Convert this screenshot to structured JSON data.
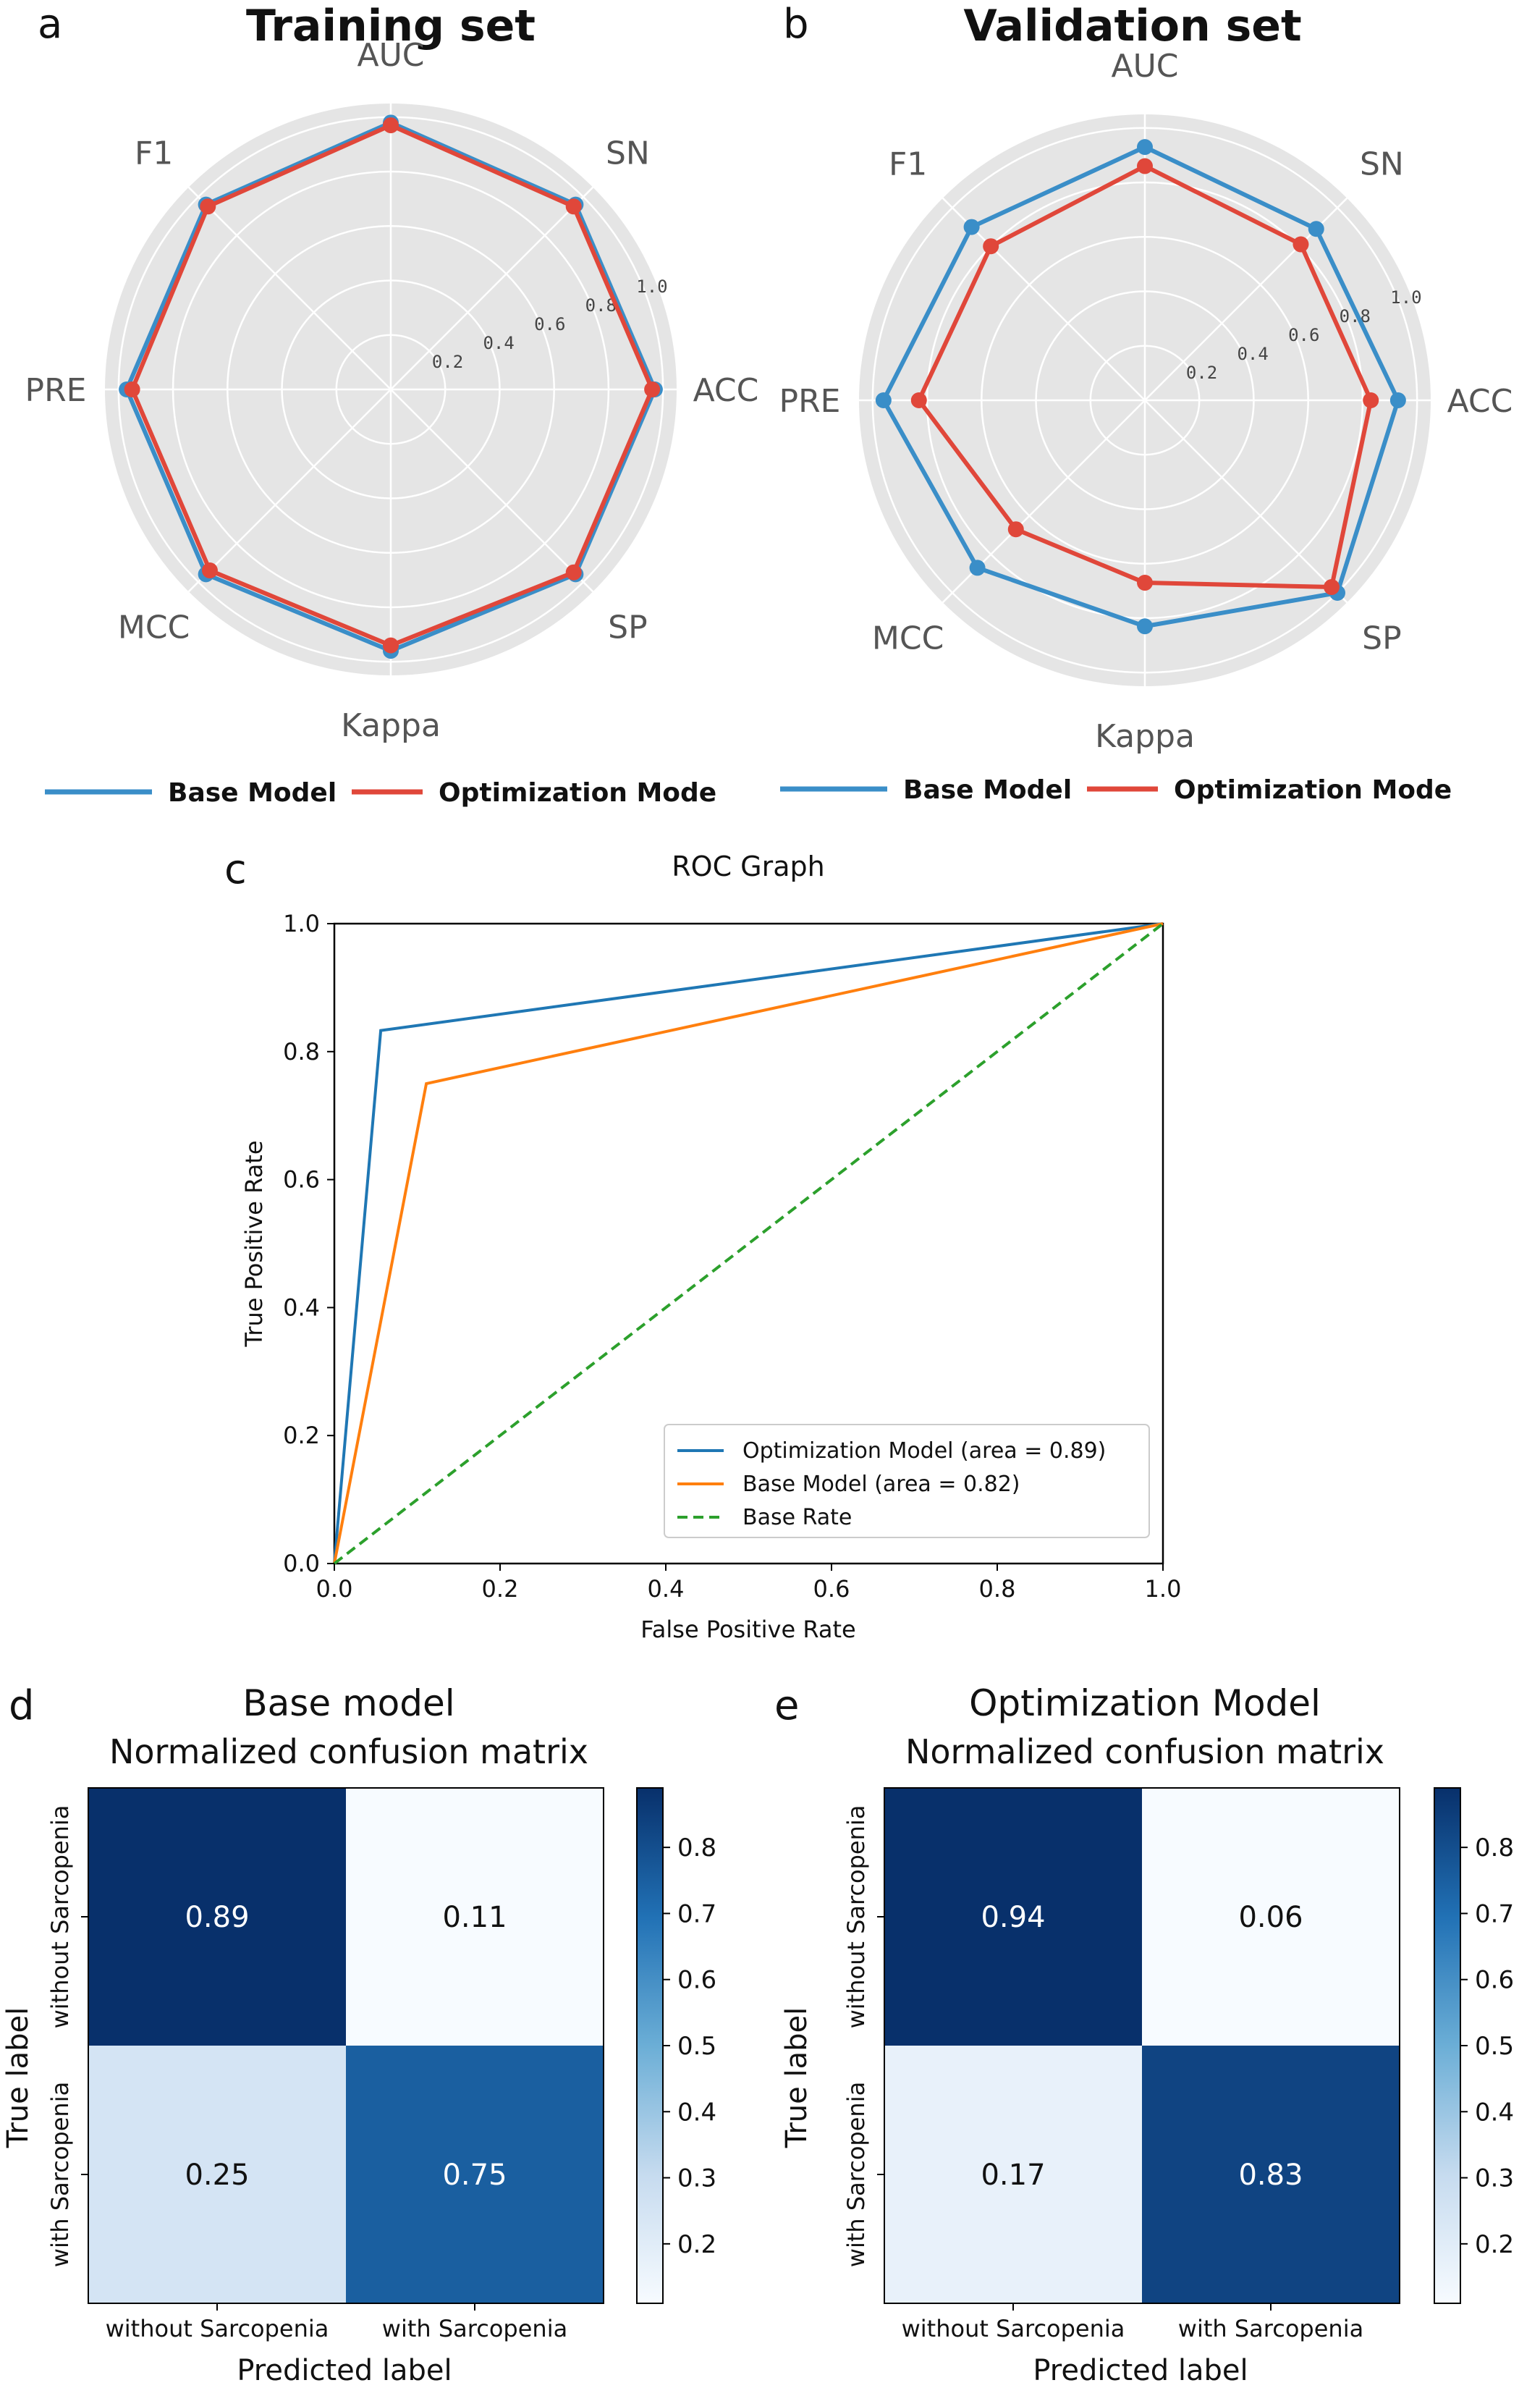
{
  "panels": {
    "a": "a",
    "b": "b",
    "c": "c",
    "d": "d",
    "e": "e"
  },
  "legend_radar": {
    "base": "Base Model",
    "optimization": "Optimization Mode"
  },
  "colors": {
    "base_radar": "#3a8ec8",
    "optimization_radar": "#e0473a",
    "roc_optimization": "#1f77b4",
    "roc_base": "#ff7f0e",
    "roc_baserate": "#2ca02c",
    "radar_bg": "#e5e5e5"
  },
  "chart_data": [
    {
      "type": "radar",
      "title": "Training set",
      "axes": [
        "AUC",
        "SN",
        "ACC",
        "SP",
        "Kappa",
        "MCC",
        "PRE",
        "F1"
      ],
      "rticks": [
        "0.2",
        "0.4",
        "0.6",
        "0.8",
        "1.0"
      ],
      "rlim": [
        0,
        1.05
      ],
      "series": [
        {
          "name": "Base Model",
          "values": [
            0.98,
            0.96,
            0.97,
            0.96,
            0.96,
            0.96,
            0.97,
            0.96
          ]
        },
        {
          "name": "Optimization Mode",
          "values": [
            0.97,
            0.95,
            0.96,
            0.95,
            0.94,
            0.94,
            0.95,
            0.95
          ]
        }
      ]
    },
    {
      "type": "radar",
      "title": "Validation set",
      "axes": [
        "AUC",
        "SN",
        "ACC",
        "SP",
        "Kappa",
        "MCC",
        "PRE",
        "F1"
      ],
      "rticks": [
        "0.2",
        "0.4",
        "0.6",
        "0.8",
        "1.0"
      ],
      "rlim": [
        0,
        1.05
      ],
      "series": [
        {
          "name": "Base Model",
          "values": [
            0.93,
            0.89,
            0.93,
            1.0,
            0.83,
            0.87,
            0.96,
            0.9
          ]
        },
        {
          "name": "Optimization Mode",
          "values": [
            0.86,
            0.81,
            0.83,
            0.97,
            0.67,
            0.67,
            0.83,
            0.8
          ]
        }
      ]
    },
    {
      "type": "line",
      "title": "ROC Graph",
      "xlabel": "False Positive Rate",
      "ylabel": "True Positive Rate",
      "xlim": [
        0,
        1
      ],
      "ylim": [
        0,
        1
      ],
      "xticks": [
        "0.0",
        "0.2",
        "0.4",
        "0.6",
        "0.8",
        "1.0"
      ],
      "yticks": [
        "0.0",
        "0.2",
        "0.4",
        "0.6",
        "0.8",
        "1.0"
      ],
      "legend_position": "lower-right",
      "series": [
        {
          "name": "Optimization Model (area = 0.89)",
          "points": [
            [
              0,
              0
            ],
            [
              0.056,
              0.833
            ],
            [
              1,
              1
            ]
          ]
        },
        {
          "name": "Base Model (area = 0.82)",
          "points": [
            [
              0,
              0
            ],
            [
              0.111,
              0.75
            ],
            [
              1,
              1
            ]
          ]
        },
        {
          "name": "Base Rate",
          "points": [
            [
              0,
              0
            ],
            [
              1,
              1
            ]
          ],
          "dashed": true
        }
      ]
    },
    {
      "type": "heatmap",
      "title": "Base model",
      "subtitle": "Normalized confusion matrix",
      "xlabel": "Predicted label",
      "ylabel": "True label",
      "x_categories": [
        "without Sarcopenia",
        "with Sarcopenia"
      ],
      "y_categories": [
        "without Sarcopenia",
        "with Sarcopenia"
      ],
      "values": [
        [
          0.89,
          0.11
        ],
        [
          0.25,
          0.75
        ]
      ],
      "labels": [
        [
          "0.89",
          "0.11"
        ],
        [
          "0.25",
          "0.75"
        ]
      ],
      "colorbar_ticks": [
        "0.2",
        "0.3",
        "0.4",
        "0.5",
        "0.6",
        "0.7",
        "0.8"
      ],
      "colorbar_range": [
        0.11,
        0.89
      ]
    },
    {
      "type": "heatmap",
      "title": "Optimization Model",
      "subtitle": "Normalized confusion matrix",
      "xlabel": "Predicted label",
      "ylabel": "True label",
      "x_categories": [
        "without Sarcopenia",
        "with Sarcopenia"
      ],
      "y_categories": [
        "without Sarcopenia",
        "with Sarcopenia"
      ],
      "values": [
        [
          0.94,
          0.06
        ],
        [
          0.17,
          0.83
        ]
      ],
      "labels": [
        [
          "0.94",
          "0.06"
        ],
        [
          "0.17",
          "0.83"
        ]
      ],
      "colorbar_ticks": [
        "0.2",
        "0.3",
        "0.4",
        "0.5",
        "0.6",
        "0.7",
        "0.8"
      ],
      "colorbar_range": [
        0.11,
        0.89
      ]
    }
  ]
}
